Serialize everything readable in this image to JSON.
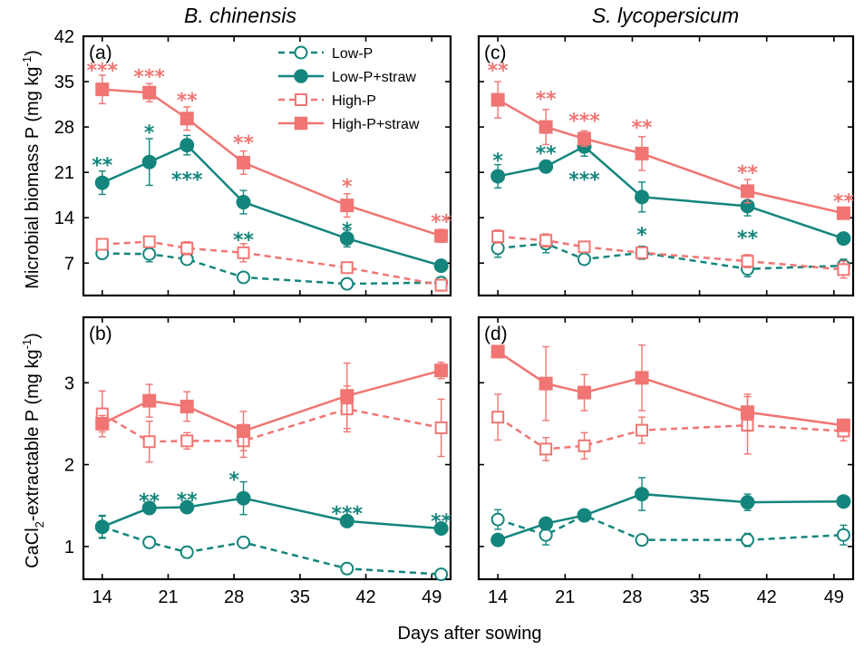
{
  "colors": {
    "low": "#13857c",
    "high": "#f07573",
    "axis": "#000000"
  },
  "figure": {
    "col_titles": [
      "B. chinensis",
      "S. lycopersicum"
    ],
    "xlabel": "Days after sowing",
    "ylabel_top": "Microbial biomass P (mg kg",
    "ylabel_top_sup": "-1",
    "ylabel_top_end": ")",
    "ylabel_bottom_pre": "CaCl",
    "ylabel_bottom_sub": "2",
    "ylabel_bottom_mid": "-extractable P (mg kg",
    "ylabel_bottom_sup": "-1",
    "ylabel_bottom_end": ")"
  },
  "legend": [
    {
      "label": "Low-P",
      "series": "Low-P"
    },
    {
      "label": "Low-P+straw",
      "series": "Low-P+straw"
    },
    {
      "label": "High-P",
      "series": "High-P"
    },
    {
      "label": "High-P+straw",
      "series": "High-P+straw"
    }
  ],
  "chart_data": [
    {
      "panel": "(a)",
      "type": "line",
      "title": "B. chinensis",
      "xlabel": "Days after sowing",
      "ylabel": "Microbial biomass P (mg kg-1)",
      "xlim": [
        12,
        51
      ],
      "ylim": [
        2,
        42
      ],
      "xticks": [
        14,
        21,
        28,
        35,
        42,
        49
      ],
      "yticks": [
        7,
        14,
        21,
        28,
        35,
        42
      ],
      "x": [
        14,
        19,
        23,
        29,
        40,
        50
      ],
      "series": [
        {
          "name": "Low-P",
          "values": [
            8.5,
            8.4,
            7.6,
            4.8,
            3.8,
            4.0
          ],
          "err": [
            0.8,
            1.2,
            0.8,
            0.5,
            0.6,
            0.6
          ]
        },
        {
          "name": "Low-P+straw",
          "values": [
            19.4,
            22.6,
            25.2,
            16.4,
            10.8,
            6.6
          ],
          "err": [
            1.8,
            3.6,
            1.5,
            1.8,
            1.3,
            0.5
          ]
        },
        {
          "name": "High-P",
          "values": [
            9.9,
            10.3,
            9.3,
            8.6,
            6.3,
            3.6
          ],
          "err": [
            0.8,
            0.8,
            1.0,
            1.4,
            0.8,
            0.9
          ]
        },
        {
          "name": "High-P+straw",
          "values": [
            33.8,
            33.3,
            29.3,
            22.5,
            15.9,
            11.2
          ],
          "err": [
            2.2,
            1.4,
            1.8,
            1.8,
            1.8,
            1.0
          ]
        }
      ],
      "annotations": [
        {
          "x": 14,
          "y": 37.4,
          "text": "***",
          "series": "High-P+straw"
        },
        {
          "x": 19,
          "y": 36.4,
          "text": "***",
          "series": "High-P+straw"
        },
        {
          "x": 23,
          "y": 32.8,
          "text": "**",
          "series": "High-P+straw"
        },
        {
          "x": 29,
          "y": 26.2,
          "text": "**",
          "series": "High-P+straw"
        },
        {
          "x": 40,
          "y": 19.5,
          "text": "*",
          "series": "High-P+straw"
        },
        {
          "x": 50,
          "y": 14.0,
          "text": "**",
          "series": "High-P+straw"
        },
        {
          "x": 14,
          "y": 22.8,
          "text": "**",
          "series": "Low-P+straw"
        },
        {
          "x": 19,
          "y": 27.8,
          "text": "*",
          "series": "Low-P+straw"
        },
        {
          "x": 23,
          "y": 20.5,
          "text": "***",
          "series": "Low-P+straw"
        },
        {
          "x": 29,
          "y": 11.2,
          "text": "**",
          "series": "Low-P+straw"
        },
        {
          "x": 40,
          "y": 12.8,
          "text": "*",
          "series": "Low-P+straw"
        }
      ]
    },
    {
      "panel": "(b)",
      "type": "line",
      "title": "B. chinensis",
      "xlabel": "Days after sowing",
      "ylabel": "CaCl2-extractable P (mg kg-1)",
      "xlim": [
        12,
        51
      ],
      "ylim": [
        0.6,
        3.8
      ],
      "xticks": [
        14,
        21,
        28,
        35,
        42,
        49
      ],
      "yticks": [
        1,
        2,
        3
      ],
      "x": [
        14,
        19,
        23,
        29,
        40,
        50
      ],
      "series": [
        {
          "name": "Low-P",
          "values": [
            1.24,
            1.05,
            0.93,
            1.05,
            0.73,
            0.66
          ],
          "err": [
            0.13,
            0.03,
            0.07,
            0.03,
            0.03,
            0.03
          ]
        },
        {
          "name": "Low-P+straw",
          "values": [
            1.24,
            1.47,
            1.48,
            1.59,
            1.31,
            1.22
          ],
          "err": [
            0.14,
            0.04,
            0.05,
            0.2,
            0.04,
            0.03
          ]
        },
        {
          "name": "High-P",
          "values": [
            2.62,
            2.28,
            2.29,
            2.29,
            2.68,
            2.45
          ],
          "err": [
            0.28,
            0.25,
            0.1,
            0.2,
            0.28,
            0.35
          ]
        },
        {
          "name": "High-P+straw",
          "values": [
            2.5,
            2.78,
            2.71,
            2.41,
            2.84,
            3.15
          ],
          "err": [
            0.1,
            0.2,
            0.18,
            0.24,
            0.4,
            0.1
          ]
        }
      ],
      "annotations": [
        {
          "x": 19,
          "y": 1.61,
          "text": "**",
          "series": "Low-P+straw"
        },
        {
          "x": 23,
          "y": 1.62,
          "text": "**",
          "series": "Low-P+straw"
        },
        {
          "x": 28,
          "y": 1.87,
          "text": "*",
          "series": "Low-P+straw"
        },
        {
          "x": 40,
          "y": 1.45,
          "text": "***",
          "series": "Low-P+straw"
        },
        {
          "x": 50,
          "y": 1.36,
          "text": "**",
          "series": "Low-P+straw"
        }
      ]
    },
    {
      "panel": "(c)",
      "type": "line",
      "title": "S. lycopersicum",
      "xlabel": "Days after sowing",
      "ylabel": "Microbial biomass P (mg kg-1)",
      "xlim": [
        12,
        51
      ],
      "ylim": [
        2,
        42
      ],
      "xticks": [
        14,
        21,
        28,
        35,
        42,
        49
      ],
      "yticks": [
        7,
        14,
        21,
        28,
        35,
        42
      ],
      "x": [
        14,
        19,
        23,
        29,
        40,
        50
      ],
      "series": [
        {
          "name": "Low-P",
          "values": [
            9.3,
            10.0,
            7.6,
            8.6,
            6.1,
            6.6
          ],
          "err": [
            1.4,
            1.4,
            0.7,
            1.0,
            1.2,
            1.0
          ]
        },
        {
          "name": "Low-P+straw",
          "values": [
            20.4,
            21.9,
            25.0,
            17.2,
            15.8,
            10.8
          ],
          "err": [
            1.8,
            0.9,
            1.5,
            2.3,
            1.5,
            0.5
          ]
        },
        {
          "name": "High-P",
          "values": [
            11.1,
            10.5,
            9.5,
            8.6,
            7.3,
            6.0
          ],
          "err": [
            1.0,
            1.0,
            0.8,
            0.8,
            1.0,
            1.3
          ]
        },
        {
          "name": "High-P+straw",
          "values": [
            32.2,
            28.0,
            26.2,
            23.9,
            18.1,
            14.7
          ],
          "err": [
            2.8,
            2.7,
            1.2,
            2.6,
            1.8,
            0.6
          ]
        }
      ],
      "annotations": [
        {
          "x": 14,
          "y": 37.4,
          "text": "**",
          "series": "High-P+straw"
        },
        {
          "x": 19,
          "y": 33.0,
          "text": "**",
          "series": "High-P+straw"
        },
        {
          "x": 23,
          "y": 29.6,
          "text": "***",
          "series": "High-P+straw"
        },
        {
          "x": 29,
          "y": 28.6,
          "text": "**",
          "series": "High-P+straw"
        },
        {
          "x": 40,
          "y": 21.6,
          "text": "**",
          "series": "High-P+straw"
        },
        {
          "x": 50,
          "y": 17.2,
          "text": "**",
          "series": "High-P+straw"
        },
        {
          "x": 14,
          "y": 23.5,
          "text": "*",
          "series": "Low-P+straw"
        },
        {
          "x": 19,
          "y": 24.6,
          "text": "**",
          "series": "Low-P+straw"
        },
        {
          "x": 23,
          "y": 20.5,
          "text": "***",
          "series": "Low-P+straw"
        },
        {
          "x": 29,
          "y": 12.0,
          "text": "*",
          "series": "Low-P+straw"
        },
        {
          "x": 40,
          "y": 11.5,
          "text": "**",
          "series": "Low-P+straw"
        }
      ]
    },
    {
      "panel": "(d)",
      "type": "line",
      "title": "S. lycopersicum",
      "xlabel": "Days after sowing",
      "ylabel": "CaCl2-extractable P (mg kg-1)",
      "xlim": [
        12,
        51
      ],
      "ylim": [
        0.6,
        3.8
      ],
      "xticks": [
        14,
        21,
        28,
        35,
        42,
        49
      ],
      "yticks": [
        1,
        2,
        3
      ],
      "x": [
        14,
        19,
        23,
        29,
        40,
        50
      ],
      "series": [
        {
          "name": "Low-P",
          "values": [
            1.33,
            1.14,
            1.38,
            1.08,
            1.08,
            1.14
          ],
          "err": [
            0.12,
            0.12,
            0.04,
            0.04,
            0.08,
            0.12
          ]
        },
        {
          "name": "Low-P+straw",
          "values": [
            1.08,
            1.28,
            1.38,
            1.64,
            1.54,
            1.55
          ],
          "err": [
            0.03,
            0.04,
            0.03,
            0.2,
            0.1,
            0.06
          ]
        },
        {
          "name": "High-P",
          "values": [
            2.58,
            2.19,
            2.23,
            2.42,
            2.48,
            2.41
          ],
          "err": [
            0.28,
            0.14,
            0.16,
            0.16,
            0.35,
            0.12
          ]
        },
        {
          "name": "High-P+straw",
          "values": [
            3.38,
            2.99,
            2.88,
            3.06,
            2.64,
            2.48
          ],
          "err": [
            0.06,
            0.45,
            0.22,
            0.4,
            0.22,
            0.07
          ]
        }
      ],
      "annotations": []
    }
  ]
}
